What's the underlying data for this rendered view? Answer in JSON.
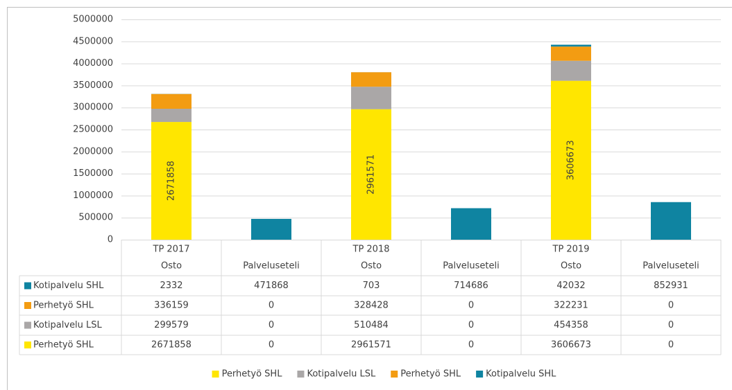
{
  "chart_data": {
    "type": "stacked_bar",
    "groups": [
      "TP 2017",
      "TP 2018",
      "TP 2019"
    ],
    "categories": [
      "Osto",
      "Palveluseteli",
      "Osto",
      "Palveluseteli",
      "Osto",
      "Palveluseteli"
    ],
    "series": [
      {
        "name": "Perhetyö SHL",
        "color": "#ffe600",
        "values": [
          2671858,
          0,
          2961571,
          0,
          3606673,
          0
        ],
        "data_labels": true
      },
      {
        "name": "Kotipalvelu LSL",
        "color": "#aaa7a7",
        "values": [
          299579,
          0,
          510484,
          0,
          454358,
          0
        ]
      },
      {
        "name": "Perhetyö SHL",
        "color": "#f39c12",
        "values": [
          336159,
          0,
          328428,
          0,
          322231,
          0
        ]
      },
      {
        "name": "Kotipalvelu SHL",
        "color": "#0f84a1",
        "values": [
          2332,
          471868,
          703,
          714686,
          42032,
          852931
        ]
      }
    ],
    "ylim": [
      0,
      5000000
    ],
    "yticks": [
      0,
      500000,
      1000000,
      1500000,
      2000000,
      2500000,
      3000000,
      3500000,
      4000000,
      4500000,
      5000000
    ],
    "grid": true,
    "data_table": true,
    "legend": "bottom"
  }
}
